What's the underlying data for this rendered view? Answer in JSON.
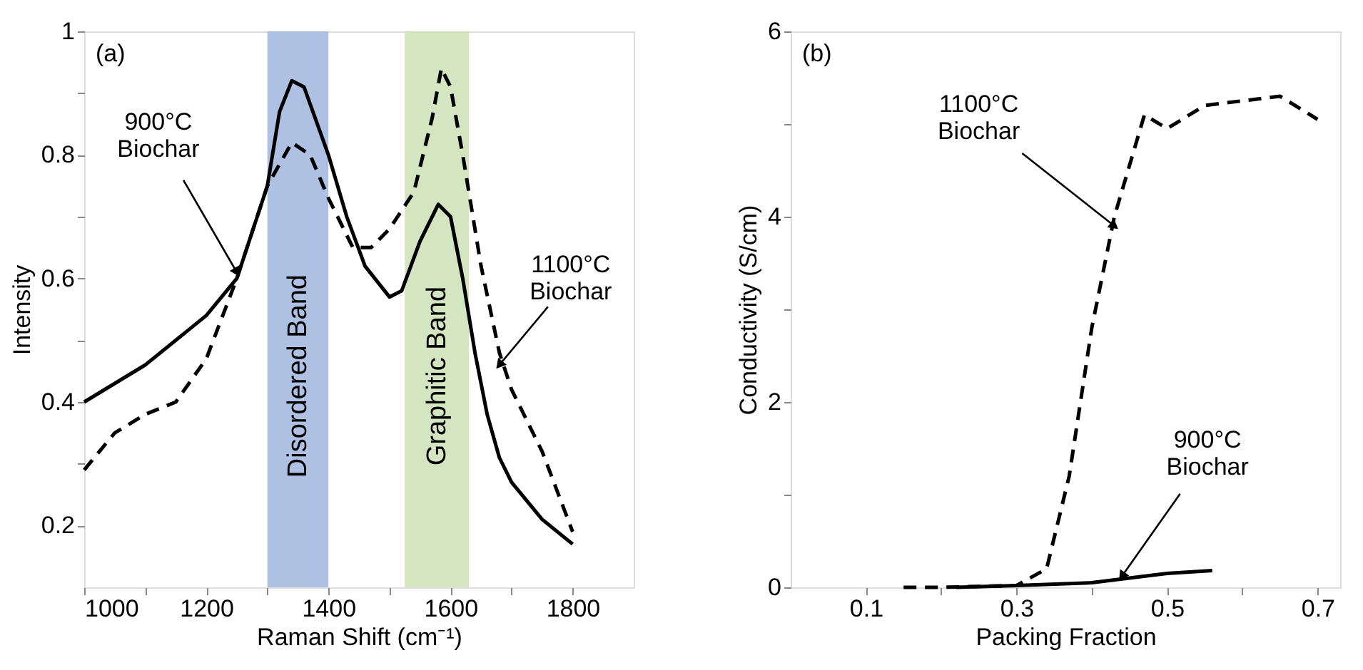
{
  "chart_data": [
    {
      "type": "line",
      "xlabel": "Raman Shift (cm⁻¹)",
      "ylabel": "Intensity",
      "xlim": [
        1000,
        1900
      ],
      "ylim": [
        0.1,
        1
      ],
      "xticks": [
        1000,
        {
          "value": 1100,
          "label": null
        },
        1200,
        {
          "value": 1300,
          "label": null
        },
        1400,
        {
          "value": 1500,
          "label": null
        },
        1600,
        {
          "value": 1700,
          "label": null
        },
        1800
      ],
      "yticks": [
        0.2,
        {
          "value": 0.3,
          "label": null
        },
        0.4,
        {
          "value": 0.5,
          "label": null
        },
        0.6,
        {
          "value": 0.7,
          "label": null
        },
        0.8,
        {
          "value": 0.9,
          "label": null
        },
        1
      ],
      "grid": false,
      "bands": [
        {
          "axis": "x",
          "from": 1300,
          "to": 1400,
          "label": "Disordered Band",
          "color": "#a6badf"
        },
        {
          "axis": "x",
          "from": 1525,
          "to": 1630,
          "label": "Graphitic Band",
          "color": "#cfe2bb"
        }
      ],
      "annotations": [
        "(a)",
        {
          "text": "900°C Biochar",
          "x": 1250,
          "y": 0.61
        },
        {
          "text": "1100°C Biochar",
          "x": 1680,
          "y": 0.46
        }
      ],
      "series": [
        {
          "color": "#000000",
          "line_style": "solid",
          "x": [
            1000,
            1100,
            1200,
            1250,
            1300,
            1320,
            1340,
            1360,
            1400,
            1430,
            1460,
            1500,
            1520,
            1550,
            1580,
            1600,
            1620,
            1640,
            1660,
            1680,
            1700,
            1750,
            1800
          ],
          "values": [
            0.4,
            0.46,
            0.54,
            0.6,
            0.75,
            0.87,
            0.92,
            0.91,
            0.8,
            0.7,
            0.62,
            0.57,
            0.58,
            0.66,
            0.72,
            0.7,
            0.6,
            0.48,
            0.38,
            0.31,
            0.27,
            0.21,
            0.17
          ]
        },
        {
          "color": "#000000",
          "line_style": "dashed",
          "x": [
            1000,
            1050,
            1100,
            1150,
            1200,
            1250,
            1300,
            1340,
            1370,
            1400,
            1440,
            1470,
            1500,
            1540,
            1570,
            1585,
            1600,
            1620,
            1650,
            1680,
            1700,
            1750,
            1800
          ],
          "values": [
            0.29,
            0.35,
            0.38,
            0.4,
            0.47,
            0.6,
            0.75,
            0.82,
            0.8,
            0.73,
            0.65,
            0.65,
            0.68,
            0.74,
            0.86,
            0.94,
            0.91,
            0.8,
            0.62,
            0.48,
            0.42,
            0.32,
            0.19
          ]
        }
      ]
    },
    {
      "type": "line",
      "xlabel": "Packing Fraction",
      "ylabel": "Conductivity (S/cm)",
      "xlim": [
        0,
        0.73
      ],
      "ylim": [
        0,
        6
      ],
      "xticks": [
        0.1,
        {
          "value": 0.2,
          "label": null
        },
        0.3,
        {
          "value": 0.4,
          "label": null
        },
        0.5,
        {
          "value": 0.6,
          "label": null
        },
        0.7
      ],
      "yticks": [
        0,
        {
          "value": 1,
          "label": null
        },
        2,
        {
          "value": 3,
          "label": null
        },
        4,
        {
          "value": 5,
          "label": null
        },
        6
      ],
      "grid": false,
      "annotations": [
        "(b)",
        {
          "text": "1100°C Biochar",
          "x": 0.43,
          "y": 3.9
        },
        {
          "text": "900°C Biochar",
          "x": 0.44,
          "y": 0.12
        }
      ],
      "series": [
        {
          "color": "#000000",
          "line_style": "dashed",
          "x": [
            0.15,
            0.2,
            0.3,
            0.34,
            0.37,
            0.4,
            0.43,
            0.47,
            0.5,
            0.55,
            0.65,
            0.7
          ],
          "values": [
            0,
            0,
            0.02,
            0.2,
            1.2,
            2.8,
            4.0,
            5.1,
            4.95,
            5.2,
            5.3,
            5.05
          ]
        },
        {
          "color": "#000000",
          "line_style": "solid",
          "x": [
            0.22,
            0.3,
            0.4,
            0.45,
            0.5,
            0.56
          ],
          "values": [
            0,
            0.02,
            0.05,
            0.1,
            0.15,
            0.18
          ]
        }
      ]
    }
  ]
}
